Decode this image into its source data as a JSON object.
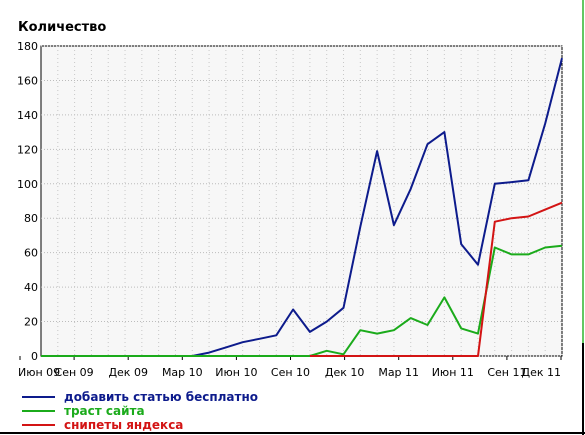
{
  "chart_data": {
    "type": "line",
    "ylabel": "Количество",
    "ylim": [
      0,
      180
    ],
    "yticks": [
      0,
      20,
      40,
      60,
      80,
      100,
      120,
      140,
      160,
      180
    ],
    "xticks": [
      "Июн 09",
      "Сен 09",
      "Дек 09",
      "Мар 10",
      "Июн 10",
      "Сен 10",
      "Дек 10",
      "Мар 11",
      "Июн 11",
      "Сен 11",
      "Дек 11"
    ],
    "grid": true,
    "legend_position": "bottom-left",
    "series": [
      {
        "name": "добавить статью бесплатно",
        "color": "#0d1b8c",
        "points": [
          [
            0,
            0
          ],
          [
            1,
            0
          ],
          [
            2,
            0
          ],
          [
            3,
            0
          ],
          [
            4,
            0
          ],
          [
            5,
            0
          ],
          [
            6,
            0
          ],
          [
            7,
            0
          ],
          [
            8,
            0
          ],
          [
            9,
            0
          ],
          [
            10,
            2
          ],
          [
            11,
            5
          ],
          [
            12,
            8
          ],
          [
            13,
            10
          ],
          [
            14,
            12
          ],
          [
            15,
            27
          ],
          [
            16,
            14
          ],
          [
            17,
            20
          ],
          [
            18,
            28
          ],
          [
            19,
            75
          ],
          [
            20,
            119
          ],
          [
            21,
            76
          ],
          [
            22,
            97
          ],
          [
            23,
            123
          ],
          [
            24,
            130
          ],
          [
            25,
            65
          ],
          [
            26,
            53
          ],
          [
            27,
            100
          ],
          [
            28,
            101
          ],
          [
            29,
            102
          ],
          [
            30,
            135
          ],
          [
            31,
            173
          ]
        ]
      },
      {
        "name": "траст сайта",
        "color": "#1bab1b",
        "points": [
          [
            0,
            0
          ],
          [
            1,
            0
          ],
          [
            2,
            0
          ],
          [
            3,
            0
          ],
          [
            4,
            0
          ],
          [
            5,
            0
          ],
          [
            6,
            0
          ],
          [
            7,
            0
          ],
          [
            8,
            0
          ],
          [
            9,
            0
          ],
          [
            10,
            0
          ],
          [
            11,
            0
          ],
          [
            12,
            0
          ],
          [
            13,
            0
          ],
          [
            14,
            0
          ],
          [
            15,
            0
          ],
          [
            16,
            0
          ],
          [
            17,
            3
          ],
          [
            18,
            1
          ],
          [
            19,
            15
          ],
          [
            20,
            13
          ],
          [
            21,
            15
          ],
          [
            22,
            22
          ],
          [
            23,
            18
          ],
          [
            24,
            34
          ],
          [
            25,
            16
          ],
          [
            26,
            13
          ],
          [
            27,
            63
          ],
          [
            28,
            59
          ],
          [
            29,
            59
          ],
          [
            30,
            63
          ],
          [
            31,
            64
          ]
        ]
      },
      {
        "name": "снипеты яндекса",
        "color": "#d31414",
        "points": [
          [
            16,
            0
          ],
          [
            17,
            0
          ],
          [
            18,
            0
          ],
          [
            19,
            0
          ],
          [
            20,
            0
          ],
          [
            21,
            0
          ],
          [
            22,
            0
          ],
          [
            23,
            0
          ],
          [
            24,
            0
          ],
          [
            25,
            0
          ],
          [
            26,
            0
          ],
          [
            27,
            78
          ],
          [
            28,
            80
          ],
          [
            29,
            81
          ],
          [
            30,
            85
          ],
          [
            31,
            89
          ]
        ]
      }
    ]
  }
}
